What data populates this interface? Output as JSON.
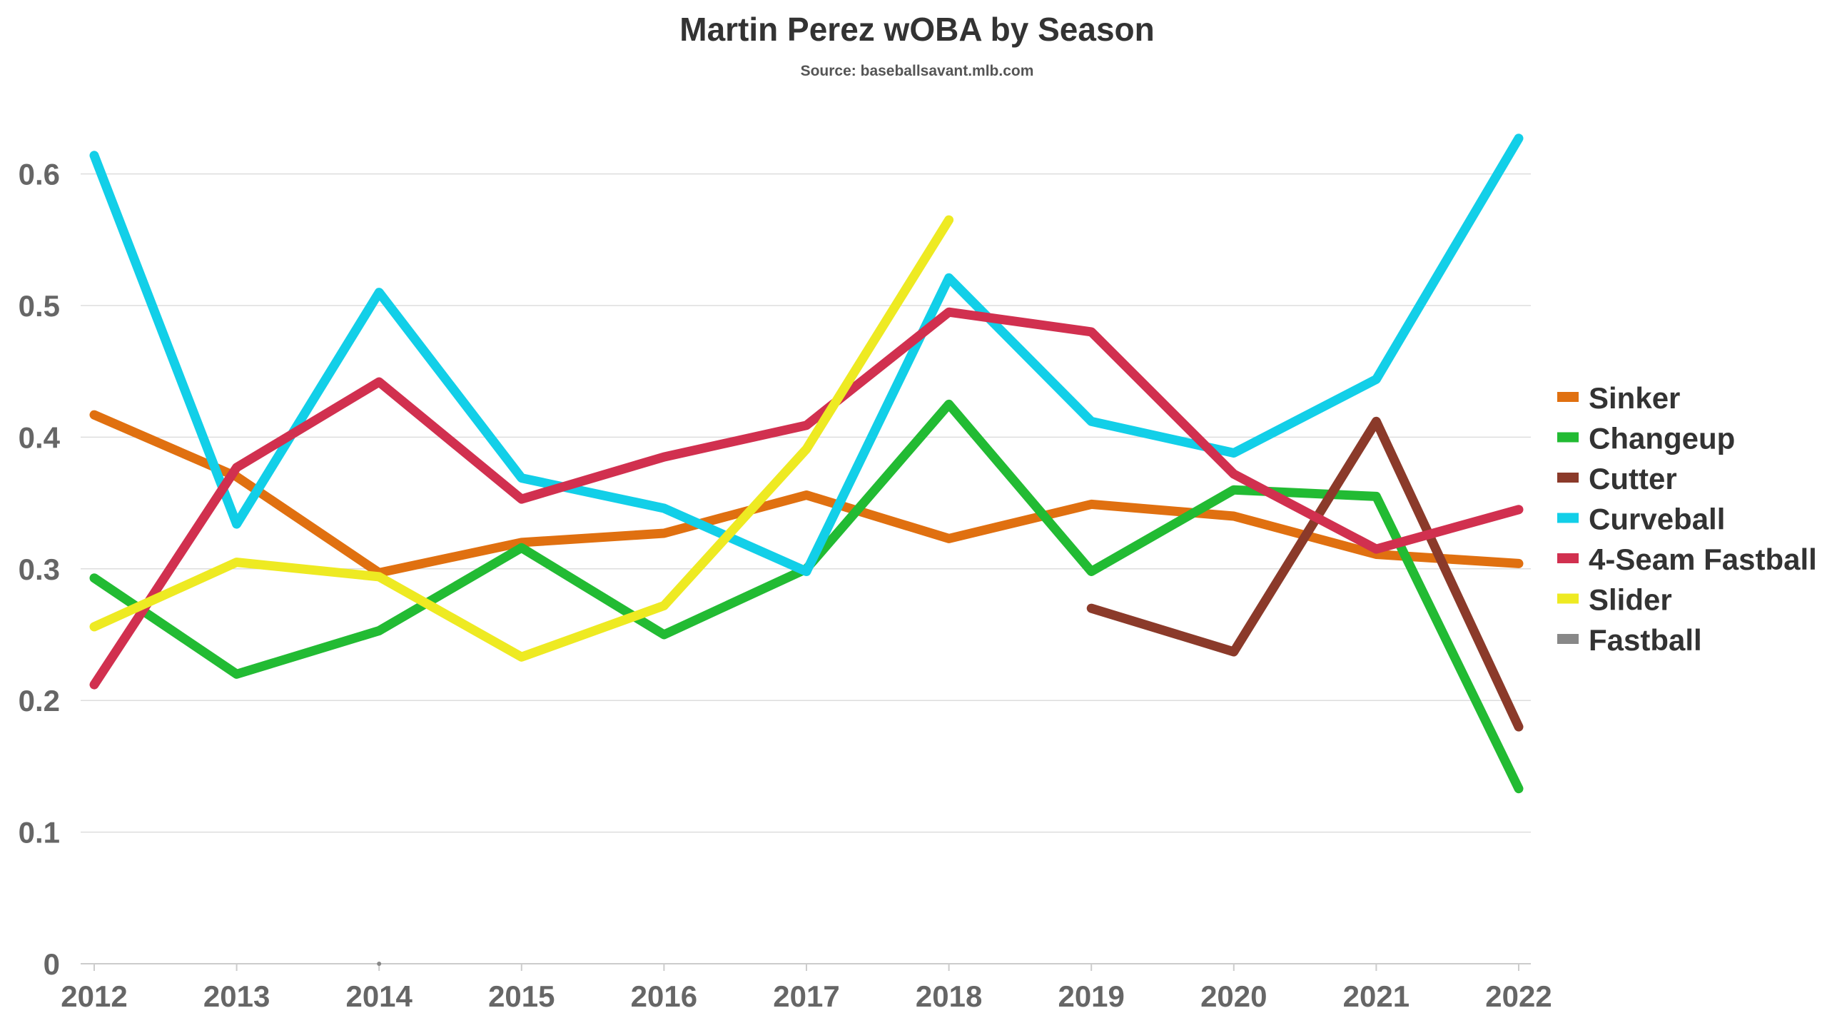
{
  "chart_data": {
    "type": "line",
    "title": "Martin Perez wOBA by Season",
    "subtitle": "Source: baseballsavant.mlb.com",
    "xlabel": "",
    "ylabel": "",
    "x": [
      "2012",
      "2013",
      "2014",
      "2015",
      "2016",
      "2017",
      "2018",
      "2019",
      "2020",
      "2021",
      "2022"
    ],
    "yticks": [
      "0",
      "0.1",
      "0.2",
      "0.3",
      "0.4",
      "0.5",
      "0.6"
    ],
    "ylim": [
      0,
      0.65
    ],
    "grid": true,
    "legend_position": "right",
    "series": [
      {
        "name": "Sinker",
        "color": "#e07010",
        "values": [
          0.417,
          0.37,
          0.297,
          0.32,
          0.327,
          0.356,
          0.323,
          0.349,
          0.34,
          0.311,
          0.304
        ]
      },
      {
        "name": "Changeup",
        "color": "#22bb33",
        "values": [
          0.293,
          0.22,
          0.253,
          0.316,
          0.25,
          0.3,
          0.425,
          0.298,
          0.36,
          0.355,
          0.133
        ]
      },
      {
        "name": "Cutter",
        "color": "#8b3a2a",
        "values": [
          null,
          null,
          null,
          null,
          null,
          null,
          null,
          0.27,
          0.237,
          0.412,
          0.18
        ]
      },
      {
        "name": "Curveball",
        "color": "#12cfe8",
        "values": [
          0.614,
          0.334,
          0.51,
          0.369,
          0.346,
          0.298,
          0.521,
          0.412,
          0.388,
          0.444,
          0.627
        ]
      },
      {
        "name": "4-Seam Fastball",
        "color": "#d1304f",
        "values": [
          0.212,
          0.377,
          0.442,
          0.353,
          0.385,
          0.409,
          0.495,
          0.48,
          0.372,
          0.315,
          0.345
        ]
      },
      {
        "name": "Slider",
        "color": "#eeea22",
        "values": [
          0.256,
          0.305,
          0.294,
          0.233,
          0.272,
          0.391,
          0.565,
          null,
          null,
          null,
          null
        ]
      },
      {
        "name": "Fastball",
        "color": "#888888",
        "values": [
          null,
          null,
          0.0,
          null,
          null,
          null,
          null,
          null,
          null,
          null,
          null
        ]
      }
    ]
  }
}
